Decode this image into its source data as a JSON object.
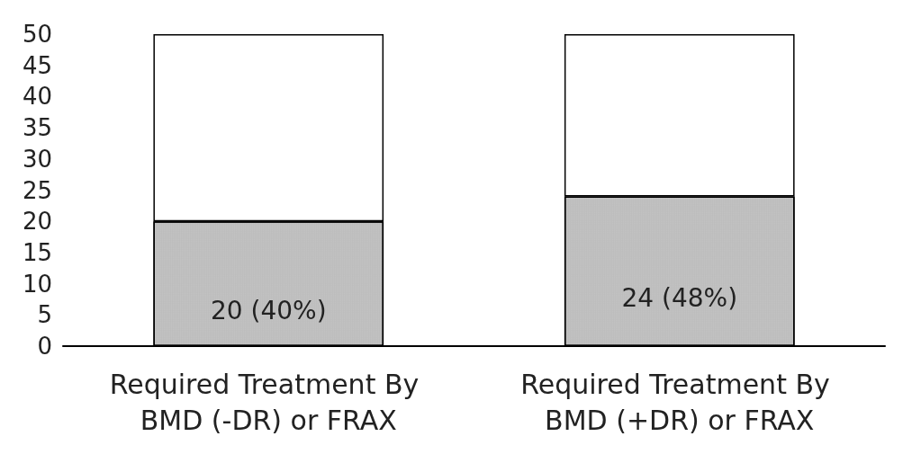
{
  "chart_data": {
    "type": "bar",
    "stacked": true,
    "categories": [
      "Required Treatment By BMD (-DR) or FRAX",
      "Required Treatment By BMD (+DR) or FRAX"
    ],
    "series": [
      {
        "color": "#e3e3e3",
        "values": [
          20,
          24
        ],
        "value_labels": [
          "20 (40%)",
          "24 (48%)"
        ]
      },
      {
        "color": "#ffffff",
        "values": [
          30,
          26
        ]
      }
    ],
    "ylim": [
      0,
      50
    ],
    "yticks": [
      0,
      5,
      10,
      15,
      20,
      25,
      30,
      35,
      40,
      45,
      50
    ],
    "grid": false
  }
}
